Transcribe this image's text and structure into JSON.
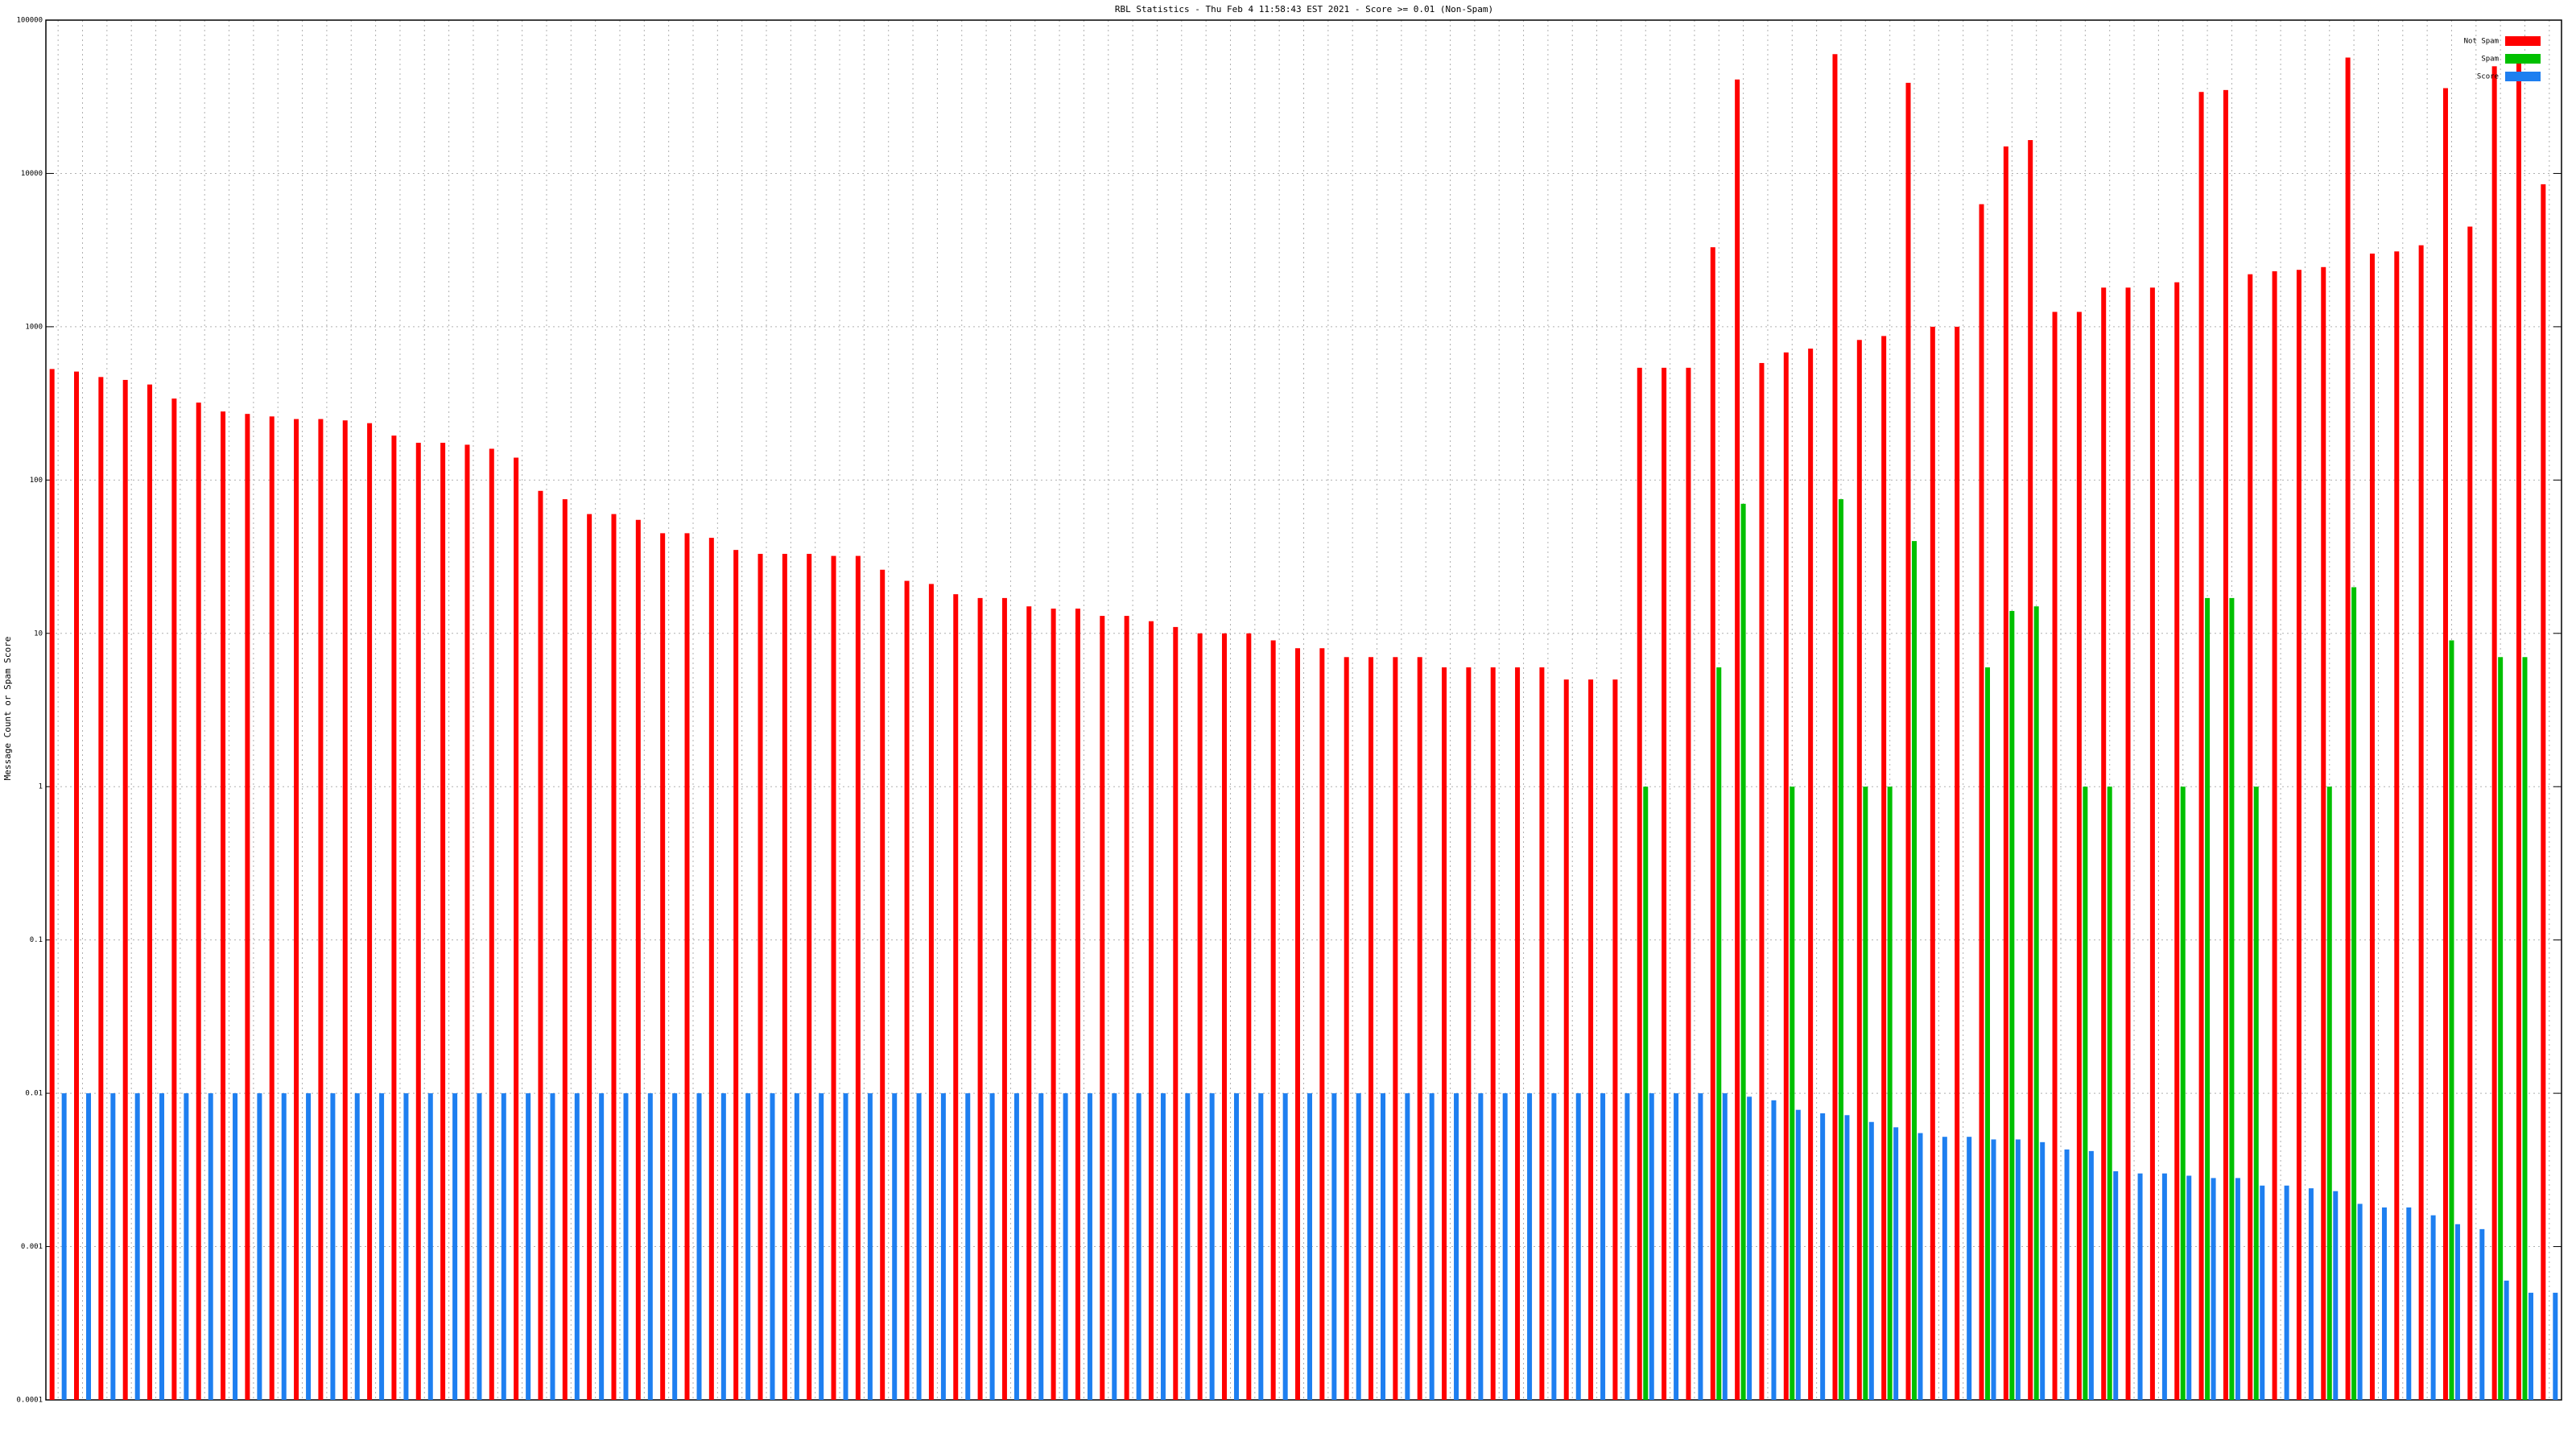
{
  "chart_data": {
    "type": "bar",
    "title": "RBL Statistics - Thu Feb  4 11:58:43 EST 2021 - Score >= 0.01 (Non-Spam)",
    "ylabel": "Message Count or Spam Score",
    "log_scale": true,
    "grid": true,
    "legend": "upper right",
    "ylim": [
      0.0001,
      100000
    ],
    "yticks": [
      0.0001,
      0.001,
      0.01,
      0.1,
      1,
      10,
      100,
      1000,
      10000,
      100000
    ],
    "categories": [
      null,
      null,
      null,
      null,
      null,
      null,
      null,
      null,
      null,
      null,
      null,
      null,
      null,
      null,
      null,
      null,
      null,
      null,
      null,
      null,
      null,
      null,
      null,
      null,
      null,
      null,
      null,
      null,
      null,
      null,
      null,
      null,
      null,
      null,
      null,
      null,
      null,
      null,
      null,
      null,
      null,
      null,
      null,
      null,
      null,
      null,
      null,
      null,
      null,
      null,
      null,
      null,
      null,
      null,
      null,
      null,
      null,
      null,
      null,
      null,
      null,
      null,
      null,
      null,
      null,
      null,
      null,
      null,
      null,
      null,
      null,
      null,
      null,
      null,
      null,
      null,
      null,
      null,
      null,
      null,
      null,
      null,
      null,
      null,
      null,
      null,
      null,
      null,
      null,
      null,
      null,
      null,
      null,
      null,
      null,
      null,
      null,
      null,
      null,
      null,
      null,
      null,
      null
    ],
    "series": [
      {
        "name": "Not Spam",
        "color": "#ff0000",
        "values": [
          530,
          510,
          470,
          450,
          420,
          340,
          320,
          280,
          270,
          260,
          250,
          250,
          245,
          235,
          195,
          175,
          175,
          170,
          160,
          140,
          85,
          75,
          60,
          60,
          55,
          45,
          45,
          42,
          35,
          33,
          33,
          33,
          32,
          32,
          26,
          22,
          21,
          18,
          17,
          17,
          15,
          14.5,
          14.5,
          13,
          13,
          12,
          11,
          10,
          10,
          10,
          9,
          8,
          8,
          7,
          7,
          7,
          7,
          6,
          6,
          6,
          6,
          6,
          5,
          5,
          5,
          540,
          540,
          540,
          3300,
          41000,
          580,
          680,
          720,
          60000,
          820,
          870,
          39000,
          1000,
          1000,
          6300,
          15000,
          16500,
          1250,
          1250,
          1800,
          1800,
          1800,
          1950,
          34000,
          35000,
          2200,
          2300,
          2350,
          2450,
          57000,
          3000,
          3100,
          3400,
          36000,
          4500,
          50000,
          55000,
          8500
        ]
      },
      {
        "name": "Spam",
        "color": "#00c000",
        "values": [
          null,
          null,
          null,
          null,
          null,
          null,
          null,
          null,
          null,
          null,
          null,
          null,
          null,
          null,
          null,
          null,
          null,
          null,
          null,
          null,
          null,
          null,
          null,
          null,
          null,
          null,
          null,
          null,
          null,
          null,
          null,
          null,
          null,
          null,
          null,
          null,
          null,
          null,
          null,
          null,
          null,
          null,
          null,
          null,
          null,
          null,
          null,
          null,
          null,
          null,
          null,
          null,
          null,
          null,
          null,
          null,
          null,
          null,
          null,
          null,
          null,
          null,
          null,
          null,
          null,
          1,
          null,
          null,
          6,
          70,
          null,
          1,
          null,
          75,
          1,
          1,
          40,
          null,
          null,
          6,
          14,
          15,
          null,
          1,
          1,
          null,
          null,
          1,
          17,
          17,
          1,
          null,
          null,
          1,
          20,
          null,
          null,
          null,
          9,
          null,
          7,
          7,
          null
        ]
      },
      {
        "name": "Score",
        "color": "#1e7ff0",
        "values": [
          0.01,
          0.01,
          0.01,
          0.01,
          0.01,
          0.01,
          0.01,
          0.01,
          0.01,
          0.01,
          0.01,
          0.01,
          0.01,
          0.01,
          0.01,
          0.01,
          0.01,
          0.01,
          0.01,
          0.01,
          0.01,
          0.01,
          0.01,
          0.01,
          0.01,
          0.01,
          0.01,
          0.01,
          0.01,
          0.01,
          0.01,
          0.01,
          0.01,
          0.01,
          0.01,
          0.01,
          0.01,
          0.01,
          0.01,
          0.01,
          0.01,
          0.01,
          0.01,
          0.01,
          0.01,
          0.01,
          0.01,
          0.01,
          0.01,
          0.01,
          0.01,
          0.01,
          0.01,
          0.01,
          0.01,
          0.01,
          0.01,
          0.01,
          0.01,
          0.01,
          0.01,
          0.01,
          0.01,
          0.01,
          0.01,
          0.01,
          0.01,
          0.01,
          0.01,
          0.0095,
          0.009,
          0.0078,
          0.0074,
          0.0072,
          0.0065,
          0.006,
          0.0055,
          0.0052,
          0.0052,
          0.005,
          0.005,
          0.0048,
          0.0043,
          0.0042,
          0.0031,
          0.003,
          0.003,
          0.0029,
          0.0028,
          0.0028,
          0.0025,
          0.0025,
          0.0024,
          0.0023,
          0.0019,
          0.0018,
          0.0018,
          0.0016,
          0.0014,
          0.0013,
          0.0006,
          0.0005,
          0.0005
        ]
      }
    ]
  }
}
